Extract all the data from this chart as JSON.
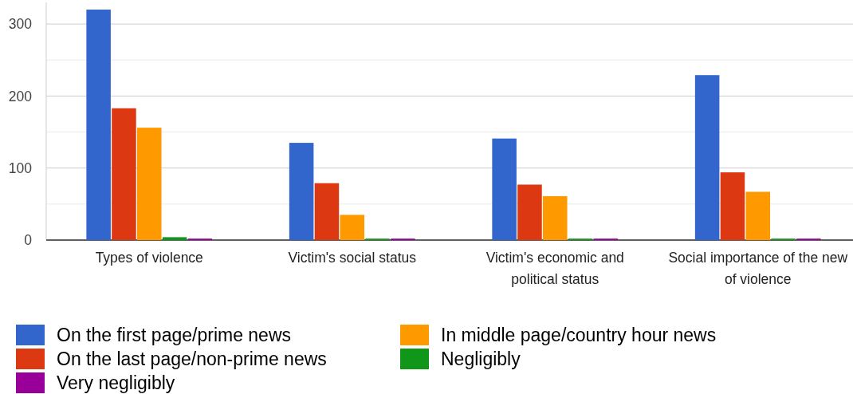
{
  "chart_data": {
    "type": "bar",
    "categories": [
      "Types of violence",
      "Victim's social status",
      "Victim's economic and political status",
      "Social importance of the new of violence"
    ],
    "series": [
      {
        "name": "On the first page/prime news",
        "color": "#3366cc",
        "values": [
          320,
          135,
          141,
          229
        ]
      },
      {
        "name": "On the last page/non-prime news",
        "color": "#dc3912",
        "values": [
          183,
          79,
          77,
          94
        ]
      },
      {
        "name": "In middle page/country hour news",
        "color": "#ff9900",
        "values": [
          156,
          35,
          61,
          67
        ]
      },
      {
        "name": "Negligibly",
        "color": "#109618",
        "values": [
          4,
          2,
          2,
          2
        ]
      },
      {
        "name": "Very negligibly",
        "color": "#990099",
        "values": [
          2,
          2,
          2,
          2
        ]
      }
    ],
    "ylim": [
      0,
      330
    ],
    "yticks": [
      0,
      {
        "value": 50,
        "label": null
      },
      100,
      {
        "value": 150,
        "label": null
      },
      200,
      {
        "value": 250,
        "label": null
      },
      300
    ],
    "grid": "y",
    "legend": "bottom"
  }
}
